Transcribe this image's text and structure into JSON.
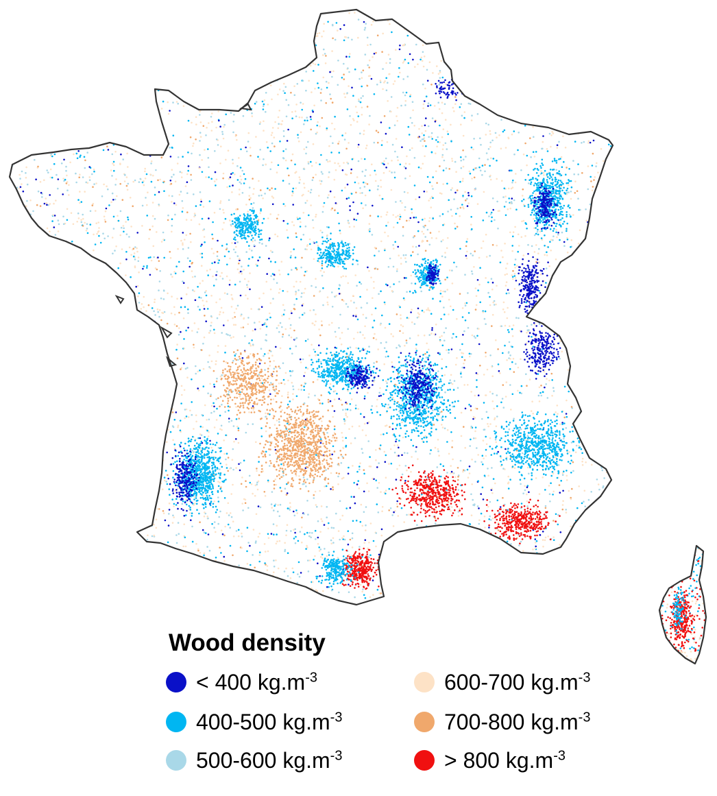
{
  "legend": {
    "title": "Wood density",
    "items": [
      {
        "id": "lt400",
        "label": "< 400 kg.m",
        "sup": "-3",
        "color": "#0a10c8"
      },
      {
        "id": "r400",
        "label": "400-500 kg.m",
        "sup": "-3",
        "color": "#00b6f2"
      },
      {
        "id": "r500",
        "label": "500-600 kg.m",
        "sup": "-3",
        "color": "#a9d8e8"
      },
      {
        "id": "r600",
        "label": "600-700 kg.m",
        "sup": "-3",
        "color": "#fde2c6"
      },
      {
        "id": "r700",
        "label": "700-800 kg.m",
        "sup": "-3",
        "color": "#f0a86c"
      },
      {
        "id": "gt800",
        "label": "> 800 kg.m",
        "sup": "-3",
        "color": "#f01010"
      }
    ]
  },
  "map": {
    "outline_color": "#333333",
    "regions": [
      "france-mainland",
      "corsica"
    ]
  }
}
